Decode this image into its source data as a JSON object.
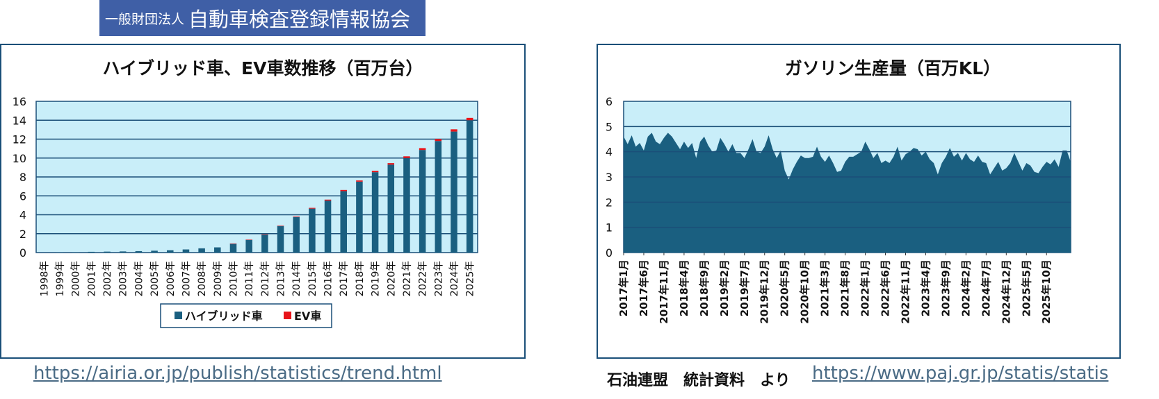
{
  "header": {
    "org_small": "一般財団法人",
    "org_large": "自動車検査登録情報協会"
  },
  "links": {
    "left_url": "https://airia.or.jp/publish/statistics/trend.html",
    "right_url": "https://www.paj.gr.jp/statis/statis",
    "source_note": "石油連盟　統計資料　より"
  },
  "colors": {
    "plot_bg": "#c9eef9",
    "bar_hybrid": "#1a5f80",
    "bar_ev": "#e8141a",
    "area_fill": "#1a5f80",
    "grid": "#1a4f78",
    "banner": "#3f5fa6"
  },
  "chart_data": [
    {
      "type": "bar",
      "stacked": true,
      "title": "ハイブリッド車、EV車数推移（百万台）",
      "categories": [
        "1998年",
        "1999年",
        "2000年",
        "2001年",
        "2002年",
        "2003年",
        "2004年",
        "2005年",
        "2006年",
        "2007年",
        "2008年",
        "2009年",
        "2010年",
        "2011年",
        "2012年",
        "2013年",
        "2014年",
        "2015年",
        "2016年",
        "2017年",
        "2018年",
        "2019年",
        "2020年",
        "2021年",
        "2022年",
        "2023年",
        "2024年",
        "2025年"
      ],
      "series": [
        {
          "name": "ハイブリッド車",
          "color": "#1a5f80",
          "values": [
            0.0,
            0.01,
            0.03,
            0.08,
            0.1,
            0.12,
            0.15,
            0.2,
            0.25,
            0.33,
            0.45,
            0.55,
            0.95,
            1.35,
            1.9,
            2.8,
            3.75,
            4.65,
            5.5,
            6.5,
            7.5,
            8.5,
            9.3,
            10.0,
            10.85,
            11.8,
            12.8,
            14.0
          ]
        },
        {
          "name": "EV車",
          "color": "#e8141a",
          "values": [
            0.0,
            0.0,
            0.0,
            0.0,
            0.0,
            0.0,
            0.0,
            0.0,
            0.0,
            0.0,
            0.0,
            0.0,
            0.01,
            0.02,
            0.03,
            0.05,
            0.06,
            0.08,
            0.1,
            0.12,
            0.13,
            0.15,
            0.16,
            0.18,
            0.2,
            0.22,
            0.24,
            0.25
          ]
        }
      ],
      "ylim": [
        0,
        16
      ],
      "yticks": [
        0,
        2,
        4,
        6,
        8,
        10,
        12,
        14,
        16
      ],
      "grid": true,
      "legend": "bottom"
    },
    {
      "type": "area",
      "title": "ガソリン生産量（百万KL）",
      "x_start": "2017年1月",
      "x_labels": [
        "2017年1月",
        "2017年6月",
        "2017年11月",
        "2018年4月",
        "2018年9月",
        "2019年2月",
        "2019年7月",
        "2019年12月",
        "2020年5月",
        "2020年10月",
        "2021年3月",
        "2021年8月",
        "2022年1月",
        "2022年6月",
        "2022年11月",
        "2023年4月",
        "2023年9月",
        "2024年2月",
        "2024年7月",
        "2024年12月",
        "2025年5月",
        "2025年10月"
      ],
      "values": [
        4.6,
        4.3,
        4.65,
        4.2,
        4.35,
        4.05,
        4.6,
        4.75,
        4.4,
        4.3,
        4.55,
        4.75,
        4.6,
        4.35,
        4.1,
        4.4,
        4.15,
        4.35,
        3.75,
        4.4,
        4.6,
        4.25,
        4.0,
        4.05,
        4.55,
        4.3,
        4.0,
        4.3,
        3.95,
        3.95,
        3.75,
        4.1,
        4.5,
        4.0,
        3.95,
        4.2,
        4.65,
        4.1,
        3.75,
        4.05,
        3.25,
        2.9,
        3.3,
        3.6,
        3.85,
        3.75,
        3.75,
        3.8,
        4.2,
        3.8,
        3.6,
        3.85,
        3.55,
        3.2,
        3.25,
        3.6,
        3.8,
        3.8,
        3.9,
        4.0,
        4.4,
        4.1,
        3.75,
        3.95,
        3.55,
        3.65,
        3.55,
        3.8,
        4.2,
        3.65,
        3.9,
        4.0,
        4.15,
        4.1,
        3.85,
        4.0,
        3.7,
        3.55,
        3.1,
        3.55,
        3.8,
        4.15,
        3.8,
        3.95,
        3.65,
        3.95,
        3.7,
        3.6,
        3.85,
        3.6,
        3.55,
        3.1,
        3.35,
        3.6,
        3.25,
        3.35,
        3.55,
        3.95,
        3.6,
        3.25,
        3.55,
        3.45,
        3.2,
        3.15,
        3.4,
        3.6,
        3.5,
        3.7,
        3.4,
        4.05,
        4.05,
        3.6
      ],
      "ylim": [
        0,
        6
      ],
      "yticks": [
        0,
        1,
        2,
        3,
        4,
        5,
        6
      ],
      "grid": true
    }
  ]
}
